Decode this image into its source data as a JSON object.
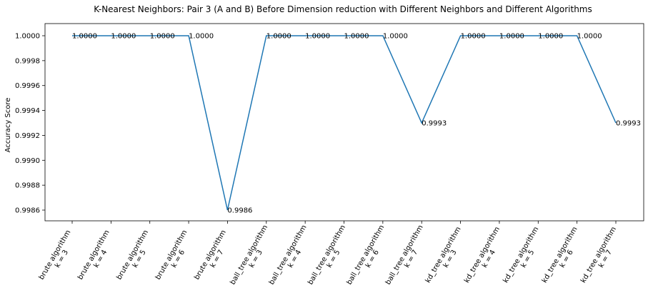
{
  "chart_data": {
    "type": "line",
    "title": "K-Nearest Neighbors: Pair 3 (A and B) Before Dimension reduction with Different Neighbors and Different Algorithms",
    "xlabel": "",
    "ylabel": "Accuracy Score",
    "ylim": [
      0.9985,
      1.0001
    ],
    "yticks": [
      "0.9986",
      "0.9988",
      "0.9990",
      "0.9992",
      "0.9994",
      "0.9996",
      "0.9998",
      "1.0000"
    ],
    "ytick_values": [
      0.9986,
      0.9988,
      0.999,
      0.9992,
      0.9994,
      0.9996,
      0.9998,
      1.0
    ],
    "grid": false,
    "legend": "none",
    "categories": [
      [
        "brute algorithm",
        "k = 3"
      ],
      [
        "brute algorithm",
        "k = 4"
      ],
      [
        "brute algorithm",
        "k = 5"
      ],
      [
        "brute algorithm",
        "k = 6"
      ],
      [
        "brute algorithm",
        "k = 7"
      ],
      [
        "ball_tree algorithm",
        "k = 3"
      ],
      [
        "ball_tree algorithm",
        "k = 4"
      ],
      [
        "ball_tree algorithm",
        "k = 5"
      ],
      [
        "ball_tree algorithm",
        "k = 6"
      ],
      [
        "ball_tree algorithm",
        "k = 7"
      ],
      [
        "kd_tree algorithm",
        "k = 3"
      ],
      [
        "kd_tree algorithm",
        "k = 4"
      ],
      [
        "kd_tree algorithm",
        "k = 5"
      ],
      [
        "kd_tree algorithm",
        "k = 6"
      ],
      [
        "kd_tree algorithm",
        "k = 7"
      ]
    ],
    "series": [
      {
        "values": [
          1.0,
          1.0,
          1.0,
          1.0,
          0.9986,
          1.0,
          1.0,
          1.0,
          1.0,
          0.9993,
          1.0,
          1.0,
          1.0,
          1.0,
          0.9993
        ],
        "color": "#1f77b4"
      }
    ],
    "data_labels": [
      "1.0000",
      "1.0000",
      "1.0000",
      "1.0000",
      "0.9986",
      "1.0000",
      "1.0000",
      "1.0000",
      "1.0000",
      "0.9993",
      "1.0000",
      "1.0000",
      "1.0000",
      "1.0000",
      "0.9993"
    ]
  }
}
